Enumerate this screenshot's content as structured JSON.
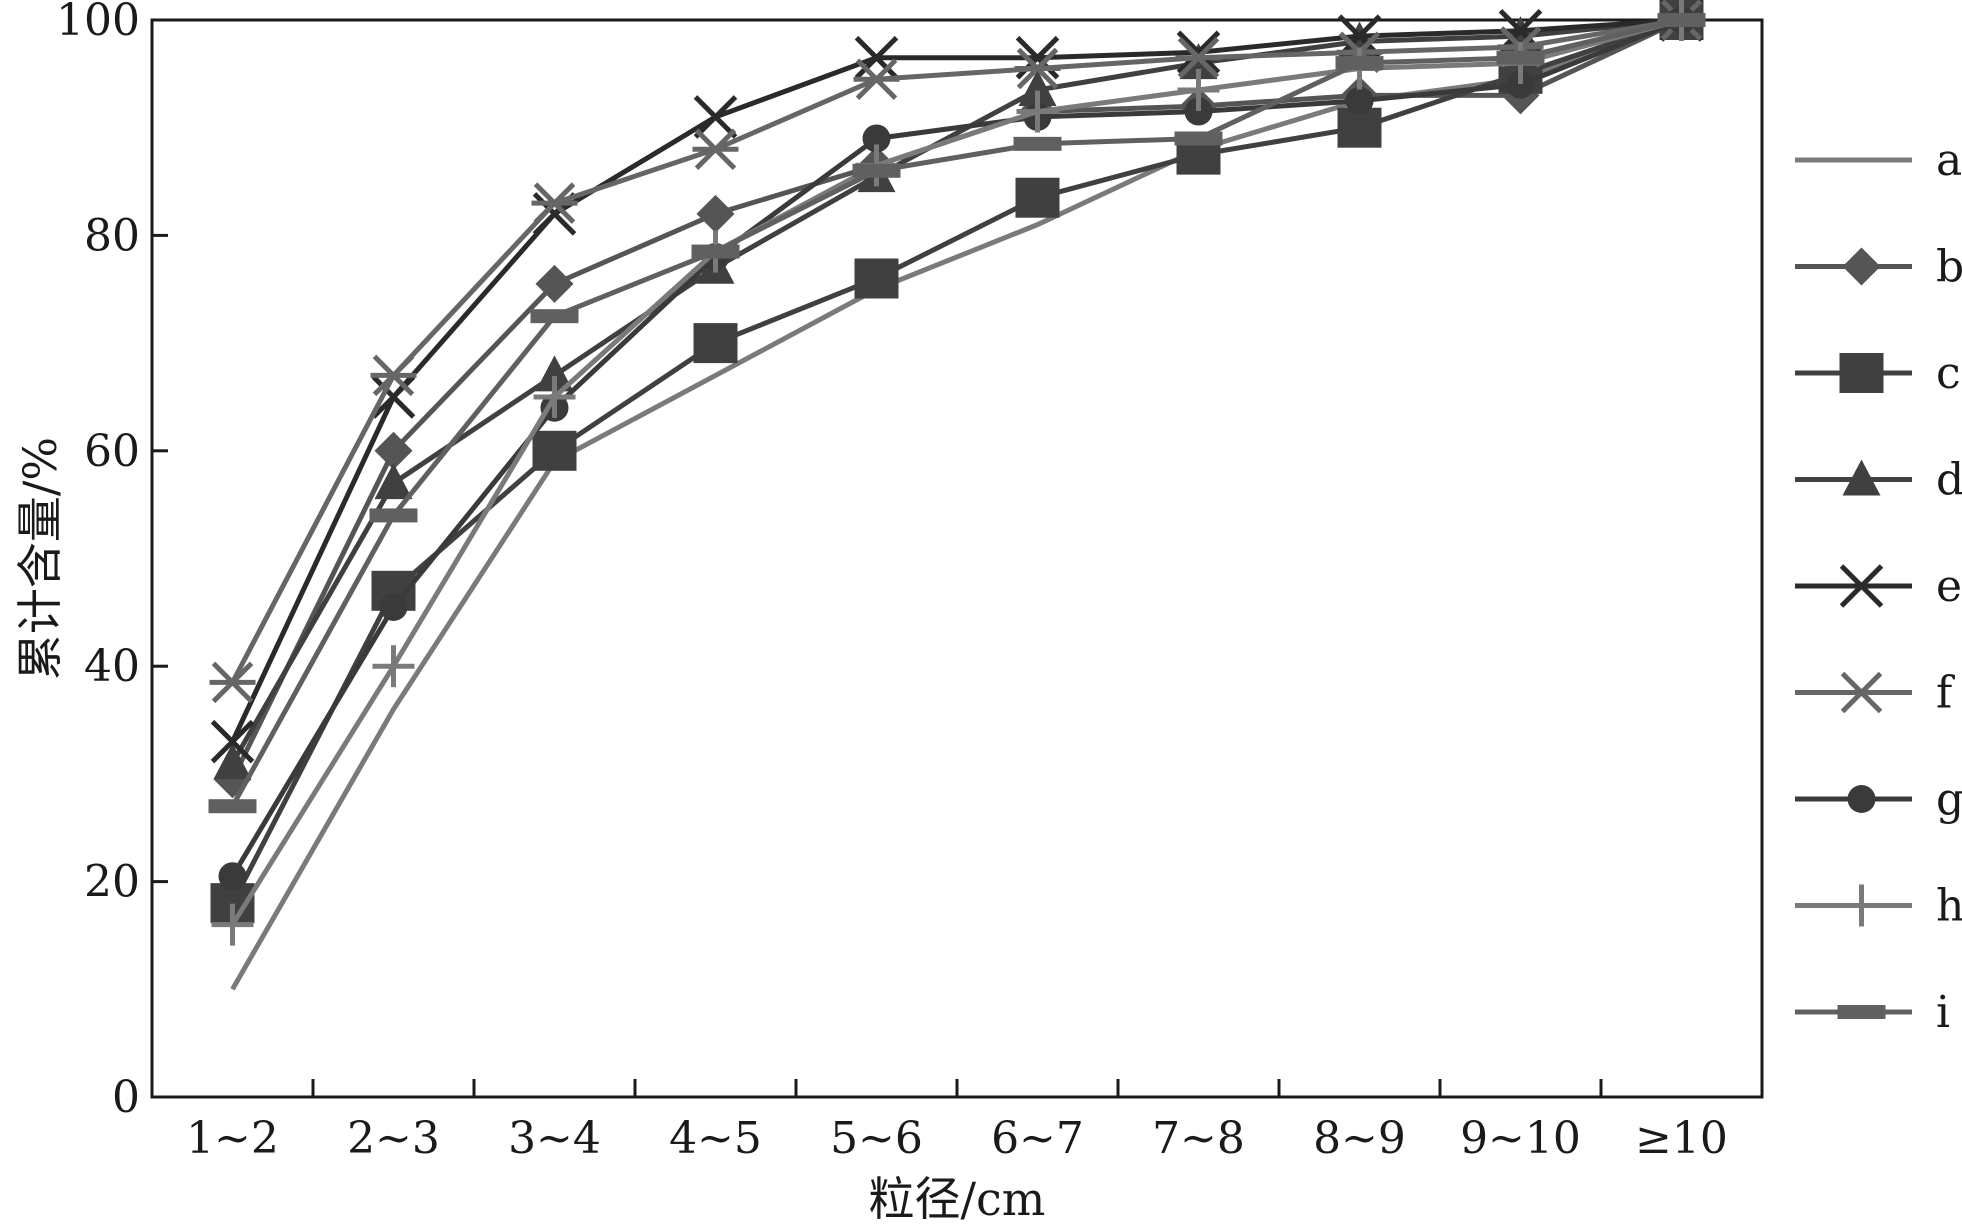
{
  "chart_data": {
    "type": "line",
    "title": "",
    "xlabel": "粒径/cm",
    "ylabel": "累计含量/%",
    "categories": [
      "1~2",
      "2~3",
      "3~4",
      "4~5",
      "5~6",
      "6~7",
      "7~8",
      "8~9",
      "9~10",
      "≥10"
    ],
    "ylim": [
      0,
      100
    ],
    "yticks": [
      0,
      20,
      40,
      60,
      80,
      100
    ],
    "grid": false,
    "legend_position": "right",
    "series": [
      {
        "name": "a",
        "marker": "none",
        "color": "#7a7a7a",
        "values": [
          10,
          36,
          59,
          67,
          75,
          81,
          88,
          92.5,
          94.5,
          100
        ]
      },
      {
        "name": "b",
        "marker": "diamond",
        "color": "#555555",
        "values": [
          29.5,
          60,
          75.5,
          82,
          86.5,
          91.5,
          92,
          93,
          93,
          100
        ]
      },
      {
        "name": "c",
        "marker": "square",
        "color": "#404040",
        "values": [
          18,
          47,
          60,
          70,
          76,
          83.5,
          87.5,
          90,
          95,
          100
        ]
      },
      {
        "name": "d",
        "marker": "triangle",
        "color": "#404040",
        "values": [
          31,
          57,
          67,
          77,
          85.5,
          93.5,
          96,
          98,
          98.5,
          100
        ]
      },
      {
        "name": "e",
        "marker": "x",
        "color": "#2a2a2a",
        "values": [
          33,
          65,
          82,
          91,
          96.5,
          96.5,
          97,
          98.5,
          99,
          100
        ]
      },
      {
        "name": "f",
        "marker": "asterisk",
        "color": "#666666",
        "values": [
          38.5,
          67,
          83,
          88,
          94.5,
          95.5,
          96.5,
          97,
          97.5,
          100
        ]
      },
      {
        "name": "g",
        "marker": "circle",
        "color": "#3a3a3a",
        "values": [
          20.5,
          45.5,
          64,
          78,
          89,
          91,
          91.5,
          92.5,
          94,
          100
        ]
      },
      {
        "name": "h",
        "marker": "plus",
        "color": "#7a7a7a",
        "values": [
          16,
          40,
          65,
          78.5,
          86.5,
          91.5,
          93.5,
          95.5,
          96,
          100
        ]
      },
      {
        "name": "i",
        "marker": "dash",
        "color": "#606060",
        "values": [
          27,
          54,
          72.5,
          78.5,
          86,
          88.5,
          89,
          96,
          96.5,
          100
        ]
      }
    ]
  }
}
